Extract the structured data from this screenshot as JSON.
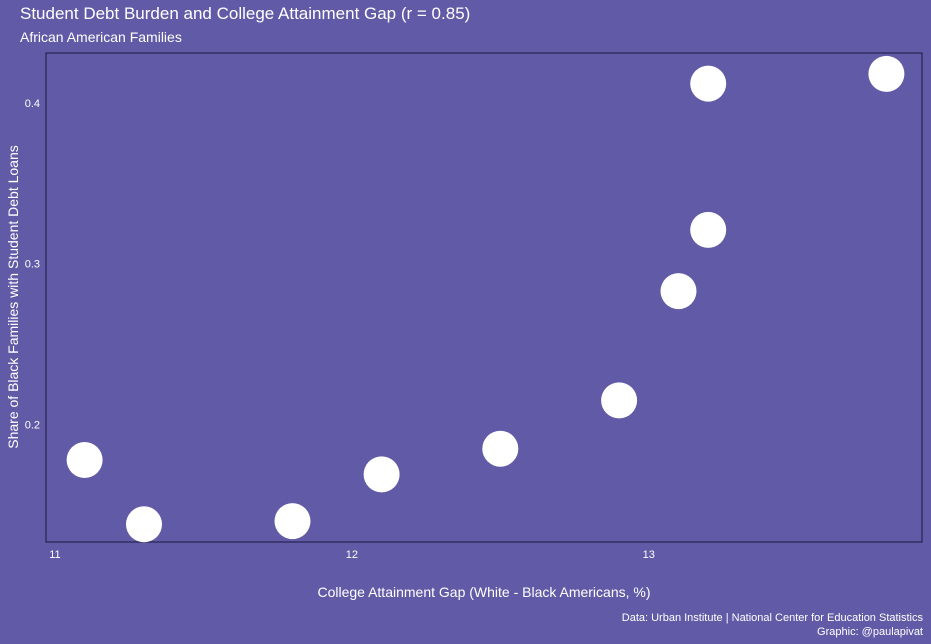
{
  "chart_data": {
    "type": "scatter",
    "title": "Student Debt Burden and College Attainment Gap (r = 0.85)",
    "subtitle": "African American Families",
    "xlabel": "College Attainment Gap (White - Black Americans, %)",
    "ylabel": "Share of Black Families with Student Debt Loans",
    "xlim": [
      10.97,
      13.92
    ],
    "ylim": [
      0.127,
      0.431
    ],
    "xticks": [
      11,
      12,
      13
    ],
    "yticks": [
      0.2,
      0.3,
      0.4
    ],
    "xtick_labels": [
      "11",
      "12",
      "13"
    ],
    "ytick_labels": [
      "0.2",
      "0.3",
      "0.4"
    ],
    "points": [
      {
        "x": 11.1,
        "y": 0.178
      },
      {
        "x": 11.3,
        "y": 0.138
      },
      {
        "x": 11.8,
        "y": 0.14
      },
      {
        "x": 12.1,
        "y": 0.169
      },
      {
        "x": 12.5,
        "y": 0.185
      },
      {
        "x": 12.9,
        "y": 0.215
      },
      {
        "x": 13.1,
        "y": 0.283
      },
      {
        "x": 13.2,
        "y": 0.321
      },
      {
        "x": 13.2,
        "y": 0.412
      },
      {
        "x": 13.8,
        "y": 0.418
      }
    ],
    "grid": false,
    "colors": {
      "background": "#615aa6",
      "point": "#ffffff",
      "panel_border": "#1a1740"
    }
  },
  "caption": {
    "line1": "Data: Urban Institute | National Center for Education Statistics",
    "line2": "Graphic: @paulapivat"
  }
}
